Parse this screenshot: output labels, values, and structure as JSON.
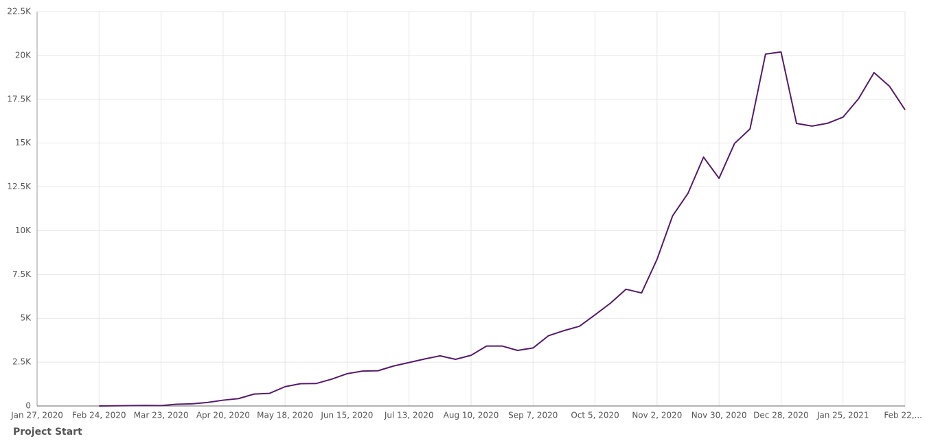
{
  "chart_data": {
    "type": "line",
    "xlabel": "Project Start",
    "x": [
      "2020-02-24",
      "2020-03-02",
      "2020-03-09",
      "2020-03-16",
      "2020-03-23",
      "2020-03-30",
      "2020-04-06",
      "2020-04-13",
      "2020-04-20",
      "2020-04-27",
      "2020-05-04",
      "2020-05-11",
      "2020-05-18",
      "2020-05-25",
      "2020-06-01",
      "2020-06-08",
      "2020-06-15",
      "2020-06-22",
      "2020-06-29",
      "2020-07-06",
      "2020-07-13",
      "2020-07-20",
      "2020-07-27",
      "2020-08-03",
      "2020-08-10",
      "2020-08-17",
      "2020-08-24",
      "2020-08-31",
      "2020-09-07",
      "2020-09-14",
      "2020-09-21",
      "2020-09-28",
      "2020-10-05",
      "2020-10-12",
      "2020-10-19",
      "2020-10-26",
      "2020-11-02",
      "2020-11-09",
      "2020-11-16",
      "2020-11-23",
      "2020-11-30",
      "2020-12-07",
      "2020-12-14",
      "2020-12-21",
      "2020-12-28",
      "2021-01-04",
      "2021-01-11",
      "2021-01-18",
      "2021-01-25",
      "2021-02-01",
      "2021-02-08",
      "2021-02-15",
      "2021-02-22"
    ],
    "series": [
      {
        "color": "#541a6b",
        "values": [
          0,
          10,
          20,
          30,
          20,
          100,
          120,
          200,
          330,
          420,
          680,
          720,
          1100,
          1270,
          1280,
          1530,
          1840,
          1990,
          2010,
          2280,
          2480,
          2680,
          2860,
          2660,
          2890,
          3420,
          3420,
          3170,
          3310,
          4010,
          4300,
          4550,
          5200,
          5870,
          6660,
          6450,
          8370,
          10840,
          12140,
          14200,
          12990,
          14980,
          15810,
          20080,
          20200,
          16120,
          15970,
          16130,
          16480,
          17530,
          19020,
          18240,
          16900
        ]
      }
    ],
    "xlim": [
      "2020-01-27",
      "2021-02-22"
    ],
    "xticks": [
      {
        "value": "2020-01-27",
        "label": "Jan 27, 2020"
      },
      {
        "value": "2020-02-24",
        "label": "Feb 24, 2020"
      },
      {
        "value": "2020-03-23",
        "label": "Mar 23, 2020"
      },
      {
        "value": "2020-04-20",
        "label": "Apr 20, 2020"
      },
      {
        "value": "2020-05-18",
        "label": "May 18, 2020"
      },
      {
        "value": "2020-06-15",
        "label": "Jun 15, 2020"
      },
      {
        "value": "2020-07-13",
        "label": "Jul 13, 2020"
      },
      {
        "value": "2020-08-10",
        "label": "Aug 10, 2020"
      },
      {
        "value": "2020-09-07",
        "label": "Sep 7, 2020"
      },
      {
        "value": "2020-10-05",
        "label": "Oct 5, 2020"
      },
      {
        "value": "2020-11-02",
        "label": "Nov 2, 2020"
      },
      {
        "value": "2020-11-30",
        "label": "Nov 30, 2020"
      },
      {
        "value": "2020-12-28",
        "label": "Dec 28, 2020"
      },
      {
        "value": "2021-01-25",
        "label": "Jan 25, 2021"
      },
      {
        "value": "2021-02-22",
        "label": "Feb 22,..."
      }
    ],
    "ylim": [
      0,
      22500
    ],
    "yticks": [
      0,
      {
        "value": 2500,
        "label": "2.5K"
      },
      {
        "value": 5000,
        "label": "5K"
      },
      {
        "value": 7500,
        "label": "7.5K"
      },
      {
        "value": 10000,
        "label": "10K"
      },
      {
        "value": 12500,
        "label": "12.5K"
      },
      {
        "value": 15000,
        "label": "15K"
      },
      {
        "value": 17500,
        "label": "17.5K"
      },
      {
        "value": 20000,
        "label": "20K"
      },
      {
        "value": 22500,
        "label": "22.5K"
      }
    ],
    "grid": true
  }
}
